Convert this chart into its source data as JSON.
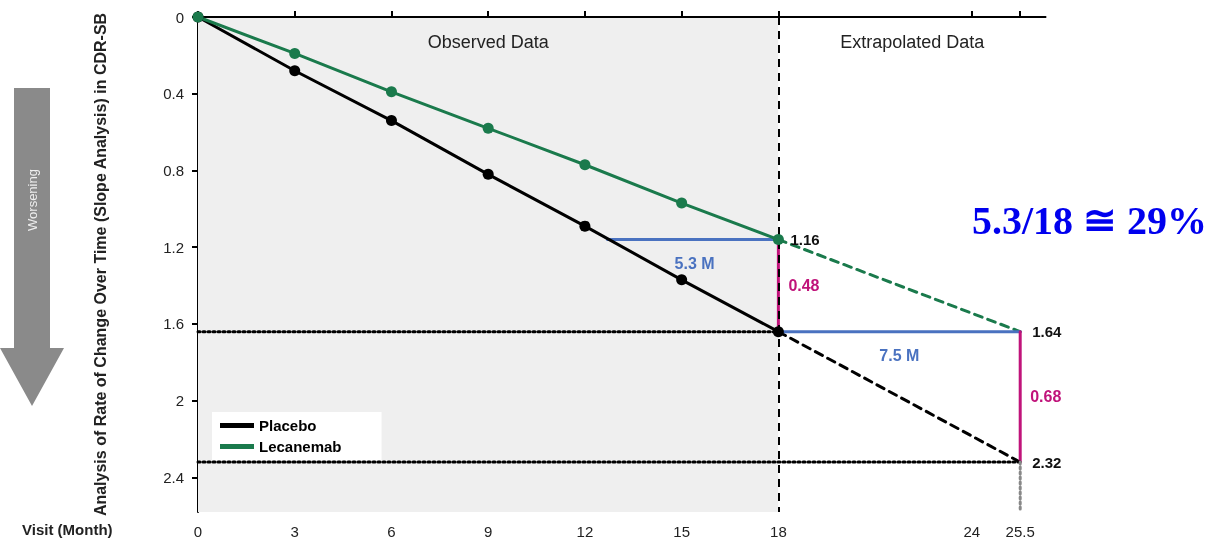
{
  "chart_data": {
    "type": "line",
    "xlabel": "Visit (Month)",
    "ylabel": "Analysis of Rate of Change Over Time (Slope Analysis) in CDR-SB",
    "xlim": [
      0,
      26.3
    ],
    "xticks": [
      0,
      3,
      6,
      9,
      12,
      15,
      18,
      24,
      25.5
    ],
    "ylim": [
      2.58,
      0
    ],
    "yticks": [
      0,
      0.4,
      0.8,
      1.2,
      1.6,
      2,
      2.4
    ],
    "grid": "y",
    "legend": "bottom left",
    "series": [
      {
        "name": "Placebo",
        "color": "#000000",
        "marker": "circle",
        "line_style": "solid",
        "x": [
          0,
          3,
          6,
          9,
          12,
          15,
          18
        ],
        "values": [
          0,
          0.28,
          0.54,
          0.82,
          1.09,
          1.37,
          1.64
        ]
      },
      {
        "name": "Lecanemab",
        "color": "#1a7a4c",
        "marker": "circle",
        "line_style": "solid",
        "x": [
          0,
          3,
          6,
          9,
          12,
          15,
          18
        ],
        "values": [
          0,
          0.19,
          0.39,
          0.58,
          0.77,
          0.97,
          1.16
        ]
      },
      {
        "color": "#1a7a4c",
        "marker": "none",
        "line_style": "dashed",
        "x": [
          18,
          25.5
        ],
        "values": [
          1.16,
          1.64
        ],
        "value_labels": [
          "1.16",
          "1.64"
        ]
      },
      {
        "color": "#000000",
        "marker": "none",
        "line_style": "dashed",
        "x": [
          18,
          25.5
        ],
        "values": [
          1.64,
          2.32
        ],
        "value_labels": [
          null,
          "2.32"
        ]
      },
      {
        "color": "#4a72c0",
        "marker": "none",
        "line_style": "solid",
        "x": [
          12.7,
          18
        ],
        "values": [
          1.16,
          1.16
        ]
      },
      {
        "color": "#4a72c0",
        "marker": "none",
        "line_style": "solid",
        "x": [
          18,
          25.5
        ],
        "values": [
          1.64,
          1.64
        ]
      },
      {
        "color": "#c0137a",
        "marker": "none",
        "line_style": "solid",
        "x": [
          18,
          18
        ],
        "values": [
          1.16,
          1.64
        ]
      },
      {
        "color": "#c0137a",
        "marker": "none",
        "line_style": "solid",
        "x": [
          25.5,
          25.5
        ],
        "values": [
          1.64,
          2.32
        ]
      },
      {
        "color": "#000000",
        "marker": "none",
        "line_style": "dotted",
        "x": [
          0,
          18
        ],
        "values": [
          1.64,
          1.64
        ]
      },
      {
        "color": "#000000",
        "marker": "none",
        "line_style": "dotted",
        "x": [
          0,
          25.5
        ],
        "values": [
          2.32,
          2.32
        ]
      },
      {
        "color": "#888888",
        "marker": "none",
        "line_style": "dotted",
        "x": [
          25.5,
          25.5
        ],
        "values": [
          2.32,
          2.58
        ]
      }
    ],
    "bands": [
      {
        "axis": "x",
        "from": 0,
        "to": 18,
        "label": "Observed Data",
        "color": "#efefef"
      },
      {
        "axis": "x",
        "from": 18,
        "to": 26.3,
        "label": "Extrapolated Data",
        "color": "#ffffff"
      }
    ],
    "ref_lines": [
      {
        "axis": "y",
        "value": 0,
        "color": "#000000",
        "line_style": "solid"
      },
      {
        "axis": "x",
        "value": 18,
        "color": "#000000",
        "line_style": "dashed"
      }
    ],
    "annotations": [
      {
        "text": "5.3 M",
        "x": 15.4,
        "y": 1.16
      },
      {
        "text": "0.48",
        "x": 18,
        "y": 1.4
      },
      {
        "text": "7.5 M",
        "x": 21.75,
        "y": 1.64
      },
      {
        "text": "0.68",
        "x": 25.5,
        "y": 1.98
      },
      "5.3/18 ≅ 29%",
      "Worsening"
    ]
  }
}
